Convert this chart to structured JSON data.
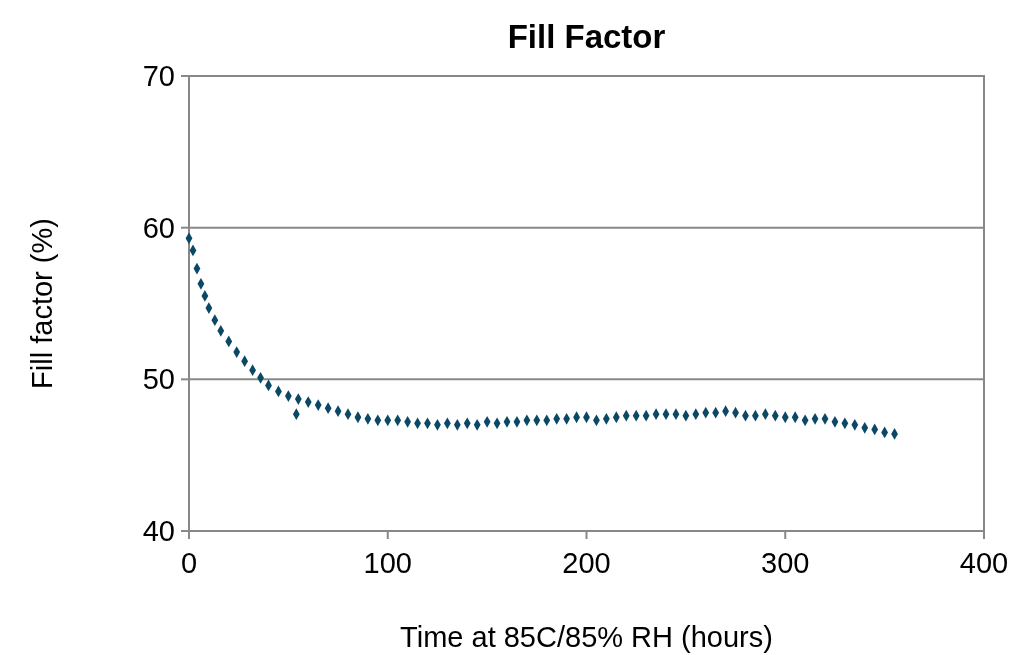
{
  "chart_data": {
    "type": "scatter",
    "title": "Fill Factor",
    "xlabel": "Time at 85C/85% RH (hours)",
    "ylabel": "Fill factor (%)",
    "x": [
      0,
      2,
      4,
      6,
      8,
      10,
      13,
      16,
      20,
      24,
      28,
      32,
      36,
      40,
      45,
      50,
      54,
      55,
      60,
      65,
      70,
      75,
      80,
      85,
      90,
      95,
      100,
      105,
      110,
      115,
      120,
      125,
      130,
      135,
      140,
      145,
      150,
      155,
      160,
      165,
      170,
      175,
      180,
      185,
      190,
      195,
      200,
      205,
      210,
      215,
      220,
      225,
      230,
      235,
      240,
      245,
      250,
      255,
      260,
      265,
      270,
      275,
      280,
      285,
      290,
      295,
      300,
      305,
      310,
      315,
      320,
      325,
      330,
      335,
      340,
      345,
      350,
      355
    ],
    "series": [
      {
        "color": "#0b4866",
        "values": [
          59.3,
          58.5,
          57.3,
          56.3,
          55.5,
          54.7,
          53.9,
          53.2,
          52.5,
          51.8,
          51.2,
          50.6,
          50.1,
          49.6,
          49.2,
          48.9,
          47.7,
          48.7,
          48.5,
          48.3,
          48.1,
          47.9,
          47.7,
          47.5,
          47.4,
          47.3,
          47.3,
          47.3,
          47.2,
          47.1,
          47.1,
          47.0,
          47.1,
          47.0,
          47.1,
          47.0,
          47.2,
          47.1,
          47.2,
          47.2,
          47.3,
          47.3,
          47.3,
          47.4,
          47.4,
          47.5,
          47.5,
          47.3,
          47.4,
          47.5,
          47.6,
          47.6,
          47.6,
          47.7,
          47.7,
          47.7,
          47.6,
          47.7,
          47.8,
          47.8,
          47.9,
          47.8,
          47.6,
          47.6,
          47.7,
          47.6,
          47.5,
          47.5,
          47.3,
          47.4,
          47.4,
          47.2,
          47.1,
          47.0,
          46.8,
          46.7,
          46.5,
          46.4
        ]
      }
    ],
    "xlim": [
      0,
      400
    ],
    "xticks": [
      0,
      100,
      200,
      300,
      400
    ],
    "ylim": [
      40,
      70
    ],
    "yticks": [
      40,
      50,
      60,
      70
    ],
    "grid": "y",
    "marker": "diamond"
  }
}
